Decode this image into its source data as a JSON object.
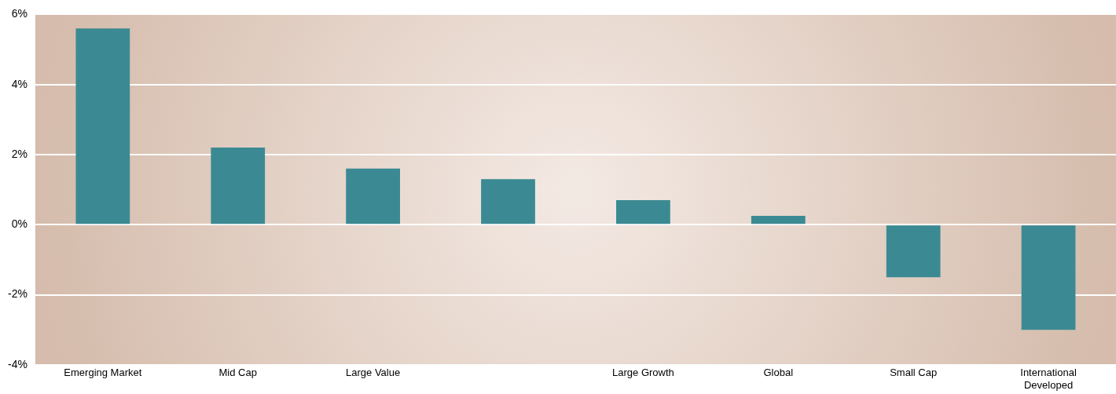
{
  "chart_data": {
    "type": "bar",
    "categories": [
      "Emerging Market",
      "Mid Cap",
      "Large Value",
      null,
      "Large Growth",
      "Global",
      "Small Cap",
      "International Developed"
    ],
    "values": [
      5.6,
      2.2,
      1.6,
      1.3,
      0.7,
      0.25,
      -1.5,
      -3.0
    ],
    "color": "#3b8a93",
    "ylim": [
      -4,
      6
    ],
    "yticks": [
      {
        "value": -4,
        "label": "-4%"
      },
      {
        "value": -2,
        "label": "-2%"
      },
      {
        "value": 0,
        "label": "0%"
      },
      {
        "value": 2,
        "label": "2%"
      },
      {
        "value": 4,
        "label": "4%"
      },
      {
        "value": 6,
        "label": "6%"
      }
    ],
    "grid": "y",
    "legend": false
  }
}
